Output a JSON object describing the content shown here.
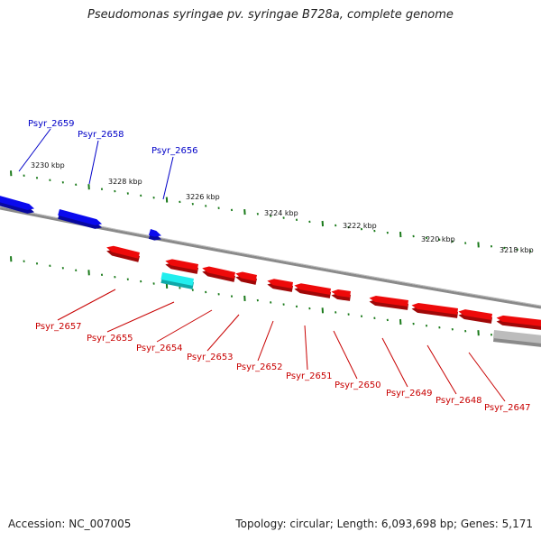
{
  "title": "Pseudomonas syringae pv. syringae B728a, complete genome",
  "footer": {
    "accession": "Accession: NC_007005",
    "summary": "Topology: circular; Length: 6,093,698 bp; Genes: 5,171"
  },
  "colors": {
    "forward_gene": "#0a0aee",
    "reverse_gene": "#ee0a0a",
    "highlight_gene": "#22eeee",
    "other_feature": "#bcbcbc",
    "backbone": "#808080",
    "tick": "#1a7a1a",
    "forward_label": "#0000c8",
    "reverse_label": "#c80000"
  },
  "scale_labels_kbp": [
    "3230 kbp",
    "3228 kbp",
    "3226 kbp",
    "3224 kbp",
    "3222 kbp",
    "3220 kbp",
    "3218 kbp"
  ],
  "genes_forward": [
    "Psyr_2659",
    "Psyr_2658",
    "Psyr_2656"
  ],
  "genes_reverse": [
    "Psyr_2657",
    "Psyr_2655",
    "Psyr_2654",
    "Psyr_2653",
    "Psyr_2652",
    "Psyr_2651",
    "Psyr_2650",
    "Psyr_2649",
    "Psyr_2648",
    "Psyr_2647"
  ]
}
